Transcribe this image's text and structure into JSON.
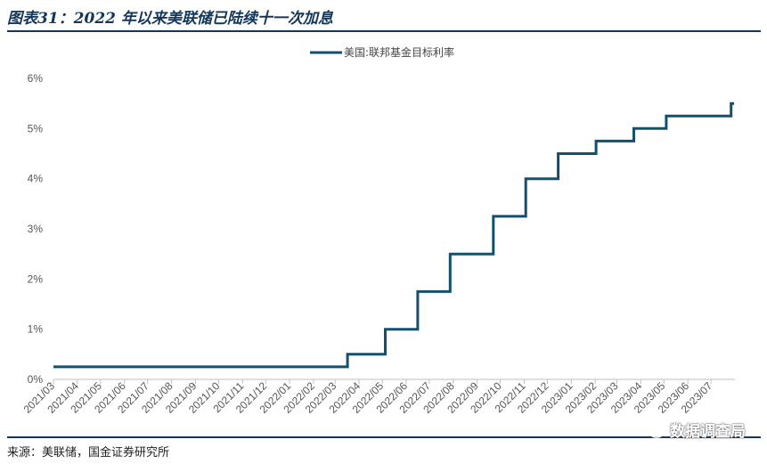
{
  "figure": {
    "title": "图表31：2022 年以来美联储已陆续十一次加息",
    "source": "来源：美联储，国金证券研究所",
    "watermark": "数据调查局"
  },
  "colors": {
    "line": "#13506e",
    "rule": "#13375a",
    "axis": "#bfbfbf"
  },
  "chart_data": {
    "type": "line",
    "step": true,
    "categories": [
      "2021/03",
      "2021/04",
      "2021/05",
      "2021/06",
      "2021/07",
      "2021/08",
      "2021/09",
      "2021/10",
      "2021/11",
      "2021/12",
      "2022/01",
      "2022/02",
      "2022/03",
      "2022/04",
      "2022/05",
      "2022/06",
      "2022/07",
      "2022/08",
      "2022/09",
      "2022/10",
      "2022/11",
      "2022/12",
      "2023/01",
      "2023/02",
      "2023/03",
      "2023/04",
      "2023/05",
      "2023/06",
      "2023/07"
    ],
    "series": [
      {
        "name": "美国:联邦基金目标利率",
        "points": [
          {
            "x": "2021/03/01",
            "y": 0.25
          },
          {
            "x": "2022/03/17",
            "y": 0.25
          },
          {
            "x": "2022/03/17",
            "y": 0.5
          },
          {
            "x": "2022/05/05",
            "y": 0.5
          },
          {
            "x": "2022/05/05",
            "y": 1.0
          },
          {
            "x": "2022/06/16",
            "y": 1.0
          },
          {
            "x": "2022/06/16",
            "y": 1.75
          },
          {
            "x": "2022/07/28",
            "y": 1.75
          },
          {
            "x": "2022/07/28",
            "y": 2.5
          },
          {
            "x": "2022/09/22",
            "y": 2.5
          },
          {
            "x": "2022/09/22",
            "y": 3.25
          },
          {
            "x": "2022/11/03",
            "y": 3.25
          },
          {
            "x": "2022/11/03",
            "y": 4.0
          },
          {
            "x": "2022/12/15",
            "y": 4.0
          },
          {
            "x": "2022/12/15",
            "y": 4.5
          },
          {
            "x": "2023/02/02",
            "y": 4.5
          },
          {
            "x": "2023/02/02",
            "y": 4.75
          },
          {
            "x": "2023/03/23",
            "y": 4.75
          },
          {
            "x": "2023/03/23",
            "y": 5.0
          },
          {
            "x": "2023/05/04",
            "y": 5.0
          },
          {
            "x": "2023/05/04",
            "y": 5.25
          },
          {
            "x": "2023/07/27",
            "y": 5.25
          },
          {
            "x": "2023/07/27",
            "y": 5.5
          },
          {
            "x": "2023/07/31",
            "y": 5.5
          }
        ]
      }
    ],
    "y_ticks": [
      "0%",
      "1%",
      "2%",
      "3%",
      "4%",
      "5%",
      "6%"
    ],
    "ylim": [
      0,
      6
    ],
    "legend_position": "top-center",
    "grid": false,
    "title": "",
    "xlabel": "",
    "ylabel": ""
  }
}
